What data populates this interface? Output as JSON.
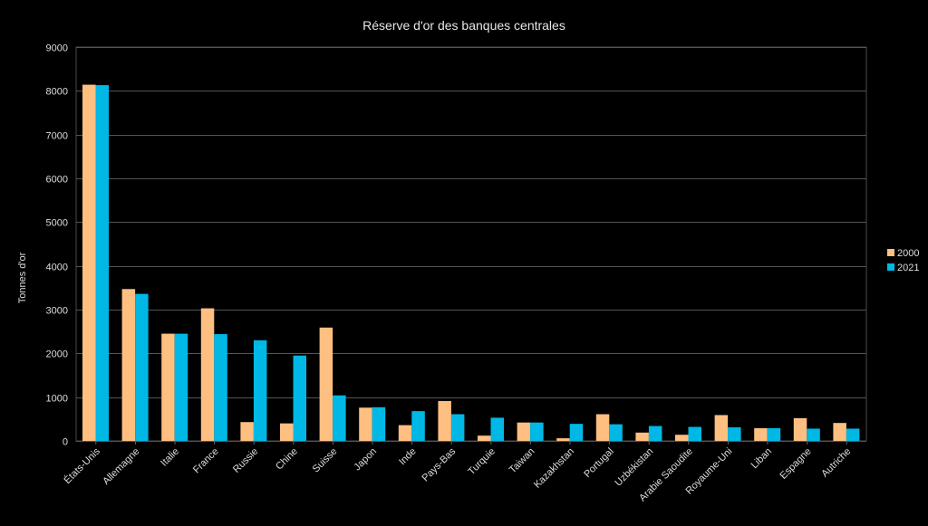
{
  "chart_data": {
    "type": "bar",
    "title": "Réserve d'or des banques centrales",
    "xlabel": "",
    "ylabel": "Tonnes d'or",
    "ylim": [
      0,
      9000
    ],
    "yticks": [
      0,
      1000,
      2000,
      3000,
      4000,
      5000,
      6000,
      7000,
      8000,
      9000
    ],
    "grid": true,
    "legend_position": "right",
    "categories": [
      "États-Unis",
      "Allemagne",
      "Italie",
      "France",
      "Russie",
      "Chine",
      "Suisse",
      "Japon",
      "Inde",
      "Pays-Bas",
      "Turquie",
      "Taiwan",
      "Kazakhstan",
      "Portugal",
      "Uzbékistan",
      "Arabie Saoudite",
      "Royaume-Uni",
      "Liban",
      "Espagne",
      "Autriche"
    ],
    "series": [
      {
        "name": "2000",
        "color": "#ffbf80",
        "values": [
          8140,
          3470,
          2450,
          3030,
          430,
          400,
          2590,
          760,
          360,
          910,
          120,
          420,
          60,
          610,
          190,
          140,
          590,
          290,
          520,
          410
        ]
      },
      {
        "name": "2021",
        "color": "#00b8e6",
        "values": [
          8130,
          3360,
          2450,
          2440,
          2300,
          1950,
          1040,
          770,
          680,
          610,
          530,
          420,
          390,
          380,
          340,
          320,
          310,
          290,
          280,
          280
        ]
      }
    ]
  }
}
